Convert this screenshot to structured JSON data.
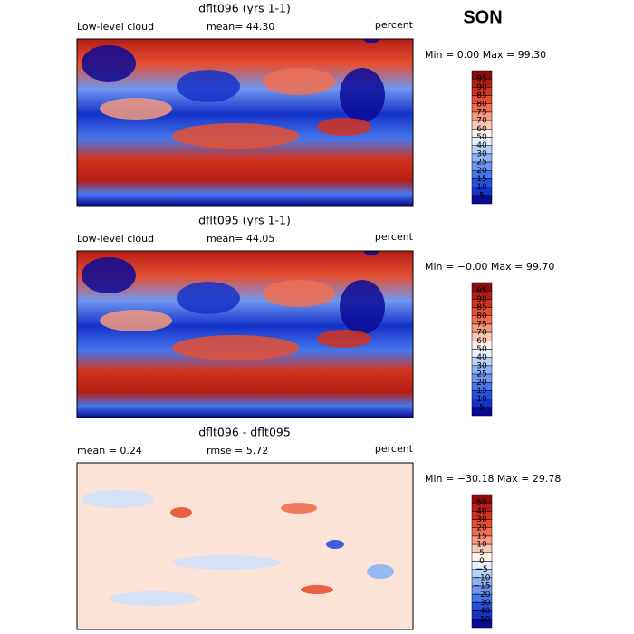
{
  "header": {
    "season": "SON"
  },
  "panels": [
    {
      "title": "dflt096 (yrs 1-1)",
      "left": "Low-level cloud",
      "middle": "mean=  44.30",
      "units": "percent",
      "minmax": "Min =   0.00 Max =  99.30",
      "levels": [
        "95",
        "90",
        "85",
        "80",
        "75",
        "70",
        "60",
        "50",
        "40",
        "30",
        "25",
        "20",
        "15",
        "10",
        "5"
      ]
    },
    {
      "title": "dflt095 (yrs 1-1)",
      "left": "Low-level cloud",
      "middle": "mean=  44.05",
      "units": "percent",
      "minmax": "Min =  −0.00 Max =  99.70",
      "levels": [
        "95",
        "90",
        "85",
        "80",
        "75",
        "70",
        "60",
        "50",
        "40",
        "30",
        "25",
        "20",
        "15",
        "10",
        "5"
      ]
    },
    {
      "title": "dflt096 - dflt095",
      "left": "mean =    0.24",
      "middle": "rmse =    5.72",
      "units": "percent",
      "minmax": "Min = −30.18 Max =  29.78",
      "levels": [
        "50",
        "40",
        "30",
        "20",
        "15",
        "10",
        "5",
        "0",
        "−5",
        "−10",
        "−15",
        "−20",
        "−30",
        "−40",
        "−50"
      ]
    }
  ]
}
